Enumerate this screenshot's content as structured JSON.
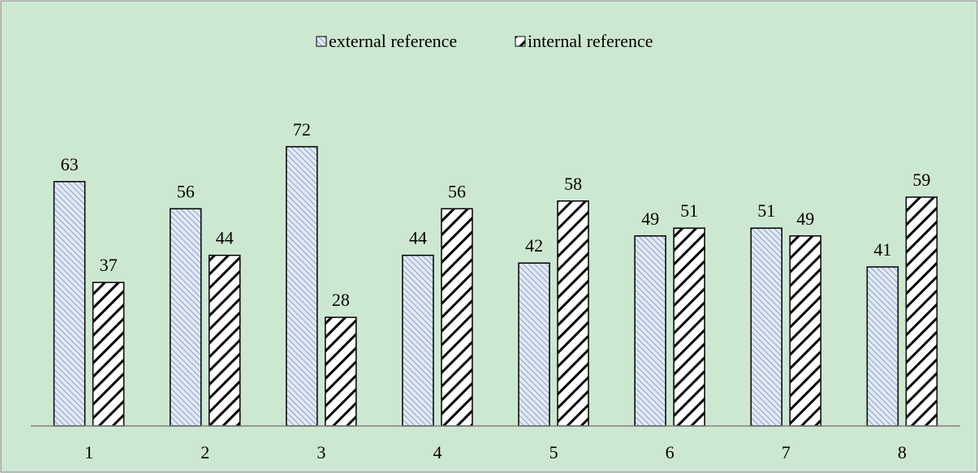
{
  "chart_data": {
    "type": "bar",
    "title": "",
    "xlabel": "",
    "ylabel": "",
    "categories": [
      "1",
      "2",
      "3",
      "4",
      "5",
      "6",
      "7",
      "8"
    ],
    "series": [
      {
        "name": "external reference",
        "values": [
          63,
          56,
          72,
          44,
          42,
          49,
          51,
          41
        ]
      },
      {
        "name": "internal reference",
        "values": [
          37,
          44,
          28,
          56,
          58,
          51,
          49,
          59
        ]
      }
    ],
    "ylim": [
      0,
      100
    ],
    "grid": false,
    "legend": "top-center",
    "colors": {
      "background": "#cde8d0",
      "external_fill": "#e2e9f4",
      "external_hatch": "#6f8fc7",
      "internal_fill": "#ffffff",
      "internal_hatch": "#000000",
      "bar_border": "#000000",
      "axis": "#808080",
      "frame": "#808080"
    }
  }
}
